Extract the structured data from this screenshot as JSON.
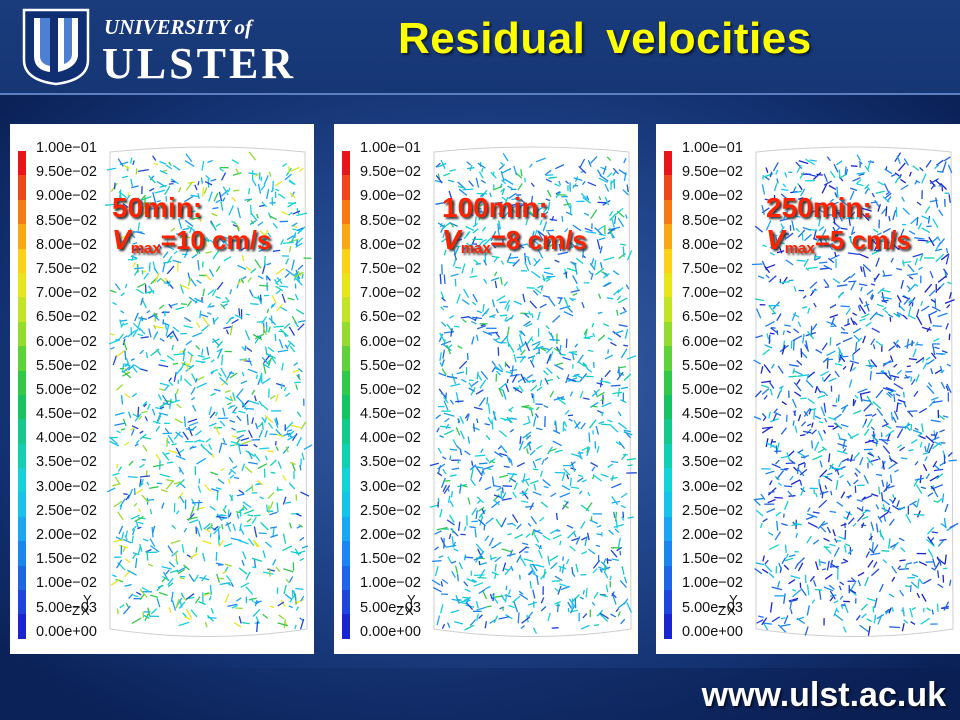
{
  "header": {
    "logo": {
      "icon": "university-shield-logo",
      "line1": "UNIVERSITY of",
      "line2": "ULSTER"
    },
    "title": "Residual velocities"
  },
  "colors": {
    "title": "#ffff00",
    "annotation": "#ff2200",
    "background": "#1f4488"
  },
  "colorbar": {
    "labels": [
      "1.00e−01",
      "9.50e−02",
      "9.00e−02",
      "8.50e−02",
      "8.00e−02",
      "7.50e−02",
      "7.00e−02",
      "6.50e−02",
      "6.00e−02",
      "5.50e−02",
      "5.00e−02",
      "4.50e−02",
      "4.00e−02",
      "3.50e−02",
      "3.00e−02",
      "2.50e−02",
      "2.00e−02",
      "1.50e−02",
      "1.00e−02",
      "5.00e−03",
      "0.00e+00"
    ],
    "colors": [
      "#e8151b",
      "#f0471a",
      "#f57a16",
      "#f9a715",
      "#fcd117",
      "#e8e51c",
      "#c3e425",
      "#93dc2f",
      "#5fd23b",
      "#32c84a",
      "#17c260",
      "#13c98c",
      "#12cfb4",
      "#14d2d8",
      "#17c2eb",
      "#1aa6f0",
      "#1d86ee",
      "#1f66e6",
      "#1f45dc",
      "#1a24cf"
    ]
  },
  "axes_triad": {
    "y": "Y",
    "zx": "ZX"
  },
  "panels": [
    {
      "time": "50min:",
      "vlabel": "V",
      "vsub": "max",
      "vvalue": "=10 cm/s"
    },
    {
      "time": "100min:",
      "vlabel": "V",
      "vsub": "max",
      "vvalue": "=8 cm/s"
    },
    {
      "time": "250min:",
      "vlabel": "V",
      "vsub": "max",
      "vvalue": "=5 cm/s"
    }
  ],
  "footer": {
    "url": "www.ulst.ac.uk"
  }
}
